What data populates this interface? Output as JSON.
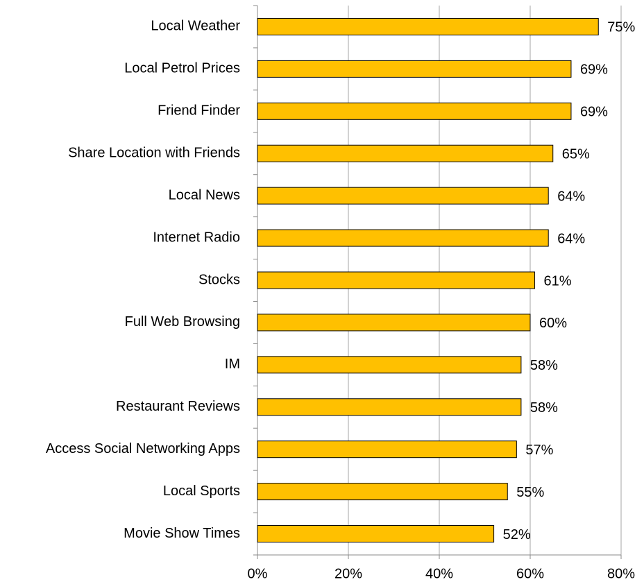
{
  "chart_data": {
    "type": "bar",
    "orientation": "horizontal",
    "categories": [
      "Local Weather",
      "Local Petrol Prices",
      "Friend Finder",
      "Share Location with Friends",
      "Local News",
      "Internet Radio",
      "Stocks",
      "Full Web Browsing",
      "IM",
      "Restaurant Reviews",
      "Access Social Networking Apps",
      "Local Sports",
      "Movie Show Times"
    ],
    "values": [
      75,
      69,
      69,
      65,
      64,
      64,
      61,
      60,
      58,
      58,
      57,
      55,
      52
    ],
    "value_labels": [
      "75%",
      "69%",
      "69%",
      "65%",
      "64%",
      "64%",
      "61%",
      "60%",
      "58%",
      "58%",
      "57%",
      "55%",
      "52%"
    ],
    "color": "#ffc000",
    "xlim": [
      0,
      80
    ],
    "xticks": [
      {
        "value": 0,
        "label": "0%"
      },
      {
        "value": 20,
        "label": "20%"
      },
      {
        "value": 40,
        "label": "40%"
      },
      {
        "value": 60,
        "label": "60%"
      },
      {
        "value": 80,
        "label": "80%"
      }
    ],
    "grid": true
  }
}
